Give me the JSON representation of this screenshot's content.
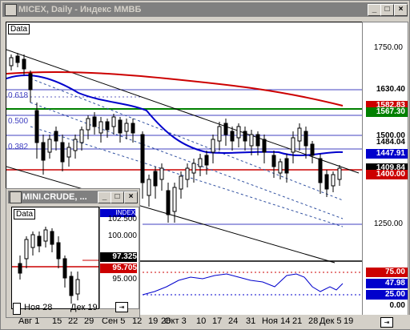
{
  "window": {
    "title": "MICEX, Daily - Индекс ММВБ",
    "minimize": "_",
    "maximize": "□",
    "close": "×"
  },
  "data_tag": "Data",
  "fib": {
    "f618": "0.618",
    "f500": "0.500",
    "f382": "0.382"
  },
  "y_axis": [
    "1750.00",
    "1250.00"
  ],
  "price_labels": [
    {
      "text": "1630.40",
      "bg": "#ffffff",
      "fg": "#000000"
    },
    {
      "text": "1582.83",
      "bg": "#cc0000",
      "fg": "#ffffff"
    },
    {
      "text": "1567.30",
      "bg": "#008000",
      "fg": "#ffffff"
    },
    {
      "text": "1500.00",
      "bg": "#ffffff",
      "fg": "#000000"
    },
    {
      "text": "1484.04",
      "bg": "#ffffff",
      "fg": "#000000"
    },
    {
      "text": "1447.91",
      "bg": "#0000cc",
      "fg": "#ffffff"
    },
    {
      "text": "1409.84",
      "bg": "#000000",
      "fg": "#ffffff"
    },
    {
      "text": "1400.00",
      "bg": "#cc0000",
      "fg": "#ffffff"
    }
  ],
  "osc_labels": [
    {
      "text": "75.00",
      "bg": "#cc0000",
      "fg": "#ffffff"
    },
    {
      "text": "47.98",
      "bg": "#0000cc",
      "fg": "#ffffff"
    },
    {
      "text": "25.00",
      "bg": "#0000cc",
      "fg": "#ffffff"
    },
    {
      "text": "0.00",
      "bg": "#ffffff",
      "fg": "#000000"
    }
  ],
  "x_axis": [
    "Авг 1",
    "15",
    "22",
    "29",
    "Сен 5",
    "12",
    "19",
    "26",
    "Окт 3",
    "10",
    "17",
    "24",
    "31",
    "Ноя 14",
    "21",
    "28",
    "Дек 5",
    "19"
  ],
  "sub_window": {
    "title": "MINI.CRUDE, ...",
    "data_tag": "Data",
    "index_tag": "INDEX",
    "y_axis": [
      "102.500",
      "100.000",
      "97.325",
      "95.705",
      "95.000"
    ],
    "x_axis": [
      "Ноя 28",
      "Дек 19"
    ]
  },
  "colors": {
    "sma_blue": "#0000cc",
    "sma_red": "#cc0000",
    "grid_green": "#008000"
  }
}
